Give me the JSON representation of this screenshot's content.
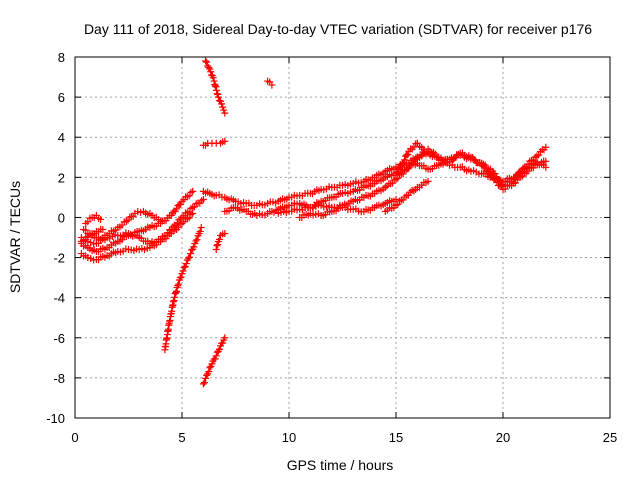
{
  "chart_data": {
    "type": "scatter",
    "title": "Day 111 of 2018, Sidereal Day-to-day VTEC variation (SDTVAR) for receiver p176",
    "xlabel": "GPS time / hours",
    "ylabel": "SDTVAR / TECUs",
    "xlim": [
      0,
      25
    ],
    "ylim": [
      -10,
      8
    ],
    "xticks": [
      0,
      5,
      10,
      15,
      20,
      25
    ],
    "yticks": [
      -10,
      -8,
      -6,
      -4,
      -2,
      0,
      2,
      4,
      6,
      8
    ],
    "xtick_labels": [
      "0",
      "5",
      "10",
      "15",
      "20",
      "25"
    ],
    "ytick_labels": [
      "-10",
      "-8",
      "-6",
      "-4",
      "-2",
      "0",
      "2",
      "4",
      "6",
      "8"
    ],
    "grid": true,
    "marker": "plus",
    "color": "#ff0000",
    "series": [
      {
        "x": [
          0.3,
          0.6,
          1.0,
          1.5,
          2.0,
          2.5,
          3.0,
          3.5,
          4.0,
          4.5,
          5.0,
          5.5
        ],
        "y": [
          -1.8,
          -2.0,
          -2.1,
          -1.9,
          -1.7,
          -1.6,
          -1.6,
          -1.5,
          -1.2,
          -0.8,
          -0.3,
          0.2
        ]
      },
      {
        "x": [
          0.3,
          0.6,
          1.0,
          1.5,
          2.0,
          2.5,
          3.0,
          3.5,
          4.0,
          4.5,
          5.0,
          5.5,
          6.0
        ],
        "y": [
          -1.0,
          -1.2,
          -1.3,
          -1.0,
          -0.9,
          -0.8,
          -1.0,
          -1.3,
          -1.1,
          -0.6,
          0.0,
          0.5,
          0.9
        ]
      },
      {
        "x": [
          0.3,
          0.6,
          1.0,
          1.5,
          2.0,
          2.5,
          3.0,
          3.5,
          4.0,
          4.5,
          5.0,
          5.5
        ],
        "y": [
          -1.3,
          -1.5,
          -1.7,
          -1.5,
          -1.2,
          -0.9,
          -0.7,
          -0.5,
          -0.3,
          0.1,
          0.8,
          1.3
        ]
      },
      {
        "x": [
          0.4,
          0.8,
          1.2,
          1.6,
          2.0,
          2.4,
          2.8,
          3.2,
          3.6,
          4.0
        ],
        "y": [
          -0.6,
          -0.9,
          -1.1,
          -0.8,
          -0.5,
          -0.2,
          0.2,
          0.3,
          0.1,
          -0.2
        ]
      },
      {
        "x": [
          0.5,
          0.8,
          1.0,
          1.2
        ],
        "y": [
          -0.3,
          0.0,
          0.1,
          -0.1
        ]
      },
      {
        "x": [
          0.3,
          0.5,
          0.8,
          1.0,
          1.3
        ],
        "y": [
          -1.2,
          -1.0,
          -0.8,
          -0.7,
          -0.6
        ]
      },
      {
        "x": [
          4.2,
          4.4,
          4.6,
          4.8,
          5.0,
          5.2,
          5.4,
          5.6,
          5.8,
          5.9
        ],
        "y": [
          -6.6,
          -5.3,
          -4.2,
          -3.4,
          -2.8,
          -2.3,
          -1.8,
          -1.3,
          -0.8,
          -0.5
        ]
      },
      {
        "x": [
          6.1,
          6.3,
          6.5,
          6.7,
          6.9,
          7.0
        ],
        "y": [
          7.8,
          7.4,
          6.8,
          6.0,
          5.5,
          5.2
        ]
      },
      {
        "x": [
          6.0,
          6.2,
          6.4,
          6.6,
          6.8,
          7.0
        ],
        "y": [
          3.6,
          3.7,
          3.7,
          3.7,
          3.7,
          3.8
        ]
      },
      {
        "x": [
          6.0,
          6.2,
          6.4,
          6.6,
          6.8,
          7.0
        ],
        "y": [
          -8.3,
          -7.8,
          -7.3,
          -6.9,
          -6.4,
          -6.0
        ]
      },
      {
        "x": [
          6.6,
          6.7,
          6.8,
          7.0
        ],
        "y": [
          -1.6,
          -1.2,
          -0.9,
          -0.8
        ]
      },
      {
        "x": [
          9.0,
          9.2
        ],
        "y": [
          6.8,
          6.6
        ]
      },
      {
        "x": [
          6.0,
          6.3,
          6.6,
          7.0,
          7.5,
          8.0,
          8.5,
          9.0,
          9.5,
          10.0,
          10.5,
          11.0,
          11.5,
          12.0,
          12.5,
          13.0,
          13.5,
          14.0,
          14.5,
          15.0,
          15.5,
          16.0,
          16.5,
          17.0,
          17.5,
          18.0,
          18.5,
          19.0,
          19.5,
          20.0,
          20.5,
          21.0,
          21.5,
          22.0
        ],
        "y": [
          1.3,
          1.2,
          1.1,
          1.0,
          0.8,
          0.7,
          0.6,
          0.7,
          0.8,
          1.0,
          1.1,
          1.2,
          1.4,
          1.5,
          1.6,
          1.7,
          1.8,
          2.0,
          2.3,
          2.5,
          2.7,
          3.0,
          3.2,
          2.9,
          2.6,
          2.5,
          2.3,
          2.2,
          2.0,
          1.8,
          2.0,
          2.4,
          2.8,
          2.5
        ]
      },
      {
        "x": [
          7.0,
          7.5,
          8.0,
          8.5,
          9.0,
          9.5,
          10.0,
          10.5,
          11.0,
          11.5,
          12.0,
          12.5,
          13.0,
          13.5,
          14.0,
          14.5,
          15.0,
          15.5,
          16.0,
          16.5,
          17.0,
          17.5,
          18.0,
          18.5,
          19.0,
          19.5,
          20.0,
          20.5,
          21.0,
          21.5,
          22.0
        ],
        "y": [
          0.3,
          0.5,
          0.3,
          0.1,
          0.2,
          0.4,
          0.6,
          0.7,
          0.5,
          0.8,
          1.0,
          1.2,
          1.3,
          1.5,
          1.7,
          2.0,
          2.2,
          2.5,
          2.7,
          2.4,
          2.6,
          2.9,
          3.1,
          2.9,
          2.7,
          2.3,
          1.6,
          1.9,
          2.5,
          3.0,
          3.5
        ]
      },
      {
        "x": [
          9.5,
          10.0,
          10.5,
          11.0,
          11.5,
          12.0,
          12.5,
          13.0,
          13.5,
          14.0,
          14.5,
          15.0,
          15.5,
          16.0,
          16.5,
          17.0,
          17.5,
          18.0,
          18.5,
          19.0,
          19.5,
          20.0,
          20.5,
          21.0,
          21.5,
          22.0
        ],
        "y": [
          0.2,
          0.3,
          0.4,
          0.5,
          0.6,
          0.5,
          0.6,
          0.8,
          1.0,
          1.2,
          1.5,
          1.9,
          2.4,
          3.0,
          3.4,
          3.0,
          2.8,
          3.2,
          3.0,
          2.6,
          2.0,
          1.4,
          1.7,
          2.2,
          2.6,
          2.8
        ]
      },
      {
        "x": [
          10.5,
          11.0,
          11.5,
          12.0,
          12.5,
          13.0,
          13.5,
          14.0,
          14.5,
          15.0
        ],
        "y": [
          0.0,
          0.2,
          0.1,
          0.3,
          0.5,
          0.4,
          0.3,
          0.5,
          0.7,
          0.9
        ]
      },
      {
        "x": [
          14.5,
          15.0,
          15.5,
          16.0,
          16.5
        ],
        "y": [
          0.3,
          0.6,
          1.1,
          1.5,
          1.8
        ]
      },
      {
        "x": [
          15.0,
          15.3,
          15.6,
          16.0,
          16.3
        ],
        "y": [
          2.2,
          2.7,
          3.3,
          3.7,
          3.4
        ]
      }
    ]
  }
}
